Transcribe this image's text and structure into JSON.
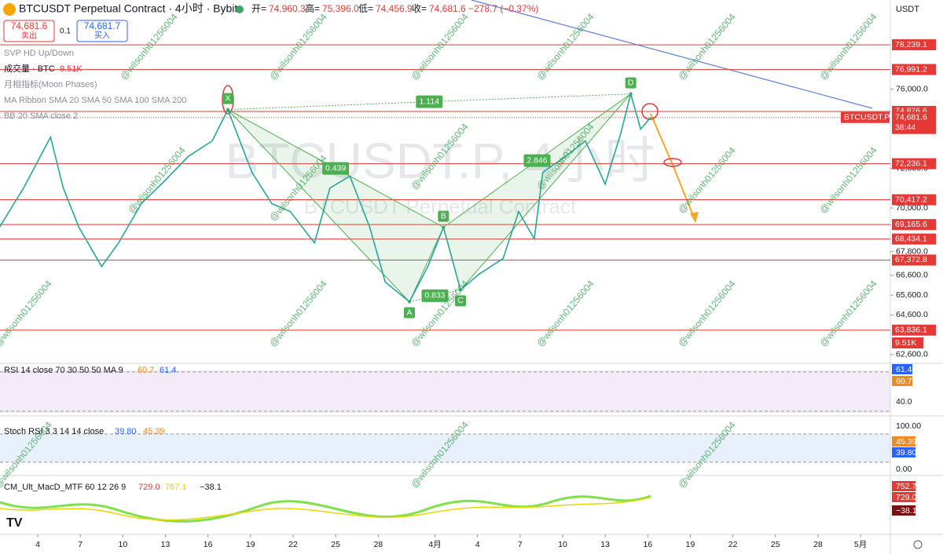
{
  "header": {
    "symbol": "BTCUSDT Perpetual Contract · 4小时 · Bybit",
    "ohlc": [
      {
        "label": "开=",
        "value": "74,960.3"
      },
      {
        "label": "高=",
        "value": "75,396.0"
      },
      {
        "label": "低=",
        "value": "74,456.9"
      },
      {
        "label": "收=",
        "value": "74,681.6"
      }
    ],
    "change": "−278.7 (−0.37%)"
  },
  "trade": {
    "sell_price": "74,681.6",
    "sell_label": "卖出",
    "qty": "0.1",
    "buy_price": "74,681.7",
    "buy_label": "买入"
  },
  "currency": "USDT",
  "indicators": [
    "SVP HD Up/Down",
    "月相指标(Moon Phases)",
    "MA Ribbon SMA 20 SMA 50 SMA 100 SMA 200",
    "BB 20 SMA close 2"
  ],
  "volume": {
    "label": "成交量 · BTC",
    "value": "9.51K"
  },
  "watermark": {
    "symbol": "BTCUSDT.P, 4小时",
    "name": "BTCUSDT Perpetual Contract"
  },
  "user_mark": "@wilsonh01256004",
  "last": {
    "symbol": "BTCUSDT.P",
    "price": "74,681.6",
    "countdown": "38:44"
  },
  "price_chart": {
    "type": "line",
    "x": [
      1.3,
      3.0,
      4.9,
      5.8,
      6.9,
      8.5,
      9.7,
      11.3,
      13.0,
      14.6,
      16.3,
      17.4,
      19.1,
      20.5,
      21.8,
      23.5,
      24.6,
      26.0,
      27.4,
      28.5,
      30.2,
      31.5,
      32.6,
      33.8,
      35.1,
      36.8,
      37.9,
      39.0,
      39.6,
      41.2,
      42.6,
      44.0,
      45.1,
      45.8,
      46.5,
      47.2
    ],
    "values": [
      69030,
      71010,
      73580,
      71010,
      69030,
      67050,
      68240,
      70220,
      71410,
      72600,
      73390,
      74970,
      71800,
      70220,
      69820,
      68240,
      71010,
      71610,
      69030,
      66260,
      65270,
      67050,
      69030,
      65870,
      66660,
      67450,
      69820,
      68440,
      71800,
      72600,
      73390,
      71210,
      73780,
      75760,
      73980,
      74570
    ],
    "ylim": [
      62200,
      80500
    ],
    "xlim": [
      1.34,
      64.1
    ],
    "yticks": [
      {
        "value": 76000,
        "label": "76,000.0"
      },
      {
        "value": 72000,
        "label": "72,000.0"
      },
      {
        "value": 70000,
        "label": "70,000.0"
      },
      {
        "value": 67800,
        "label": "67,800.0"
      },
      {
        "value": 66600,
        "label": "66,600.0"
      },
      {
        "value": 65600,
        "label": "65,600.0"
      },
      {
        "value": 64600,
        "label": "64,600.0"
      },
      {
        "value": 62600,
        "label": "62,600.0"
      }
    ],
    "xticks": [
      4,
      7,
      10,
      13,
      16,
      19,
      22,
      25,
      28,
      {
        "value": 32,
        "label": "4月"
      },
      {
        "value": 35,
        "label": "4"
      },
      {
        "value": 38,
        "label": "7"
      },
      {
        "value": 41,
        "label": "10"
      },
      {
        "value": 44,
        "label": "13"
      },
      {
        "value": 47,
        "label": "16"
      },
      {
        "value": 50,
        "label": "19"
      },
      {
        "value": 53,
        "label": "22"
      },
      {
        "value": 56,
        "label": "25"
      },
      {
        "value": 59,
        "label": "28"
      },
      {
        "value": 62,
        "label": "5月"
      }
    ],
    "levels": [
      {
        "value": 78239.1,
        "label": "78,239.1"
      },
      {
        "value": 76991.2,
        "label": "76,991.2"
      },
      {
        "value": 74876.6,
        "label": "74,876.6"
      },
      {
        "value": 72236.1,
        "label": "72,236.1"
      },
      {
        "value": 70417.2,
        "label": "70,417.2"
      },
      {
        "value": 69165.6,
        "label": "69,165.6"
      },
      {
        "value": 68434.1,
        "label": "68,434.1"
      },
      {
        "value": 67372.8,
        "label": "67,372.8"
      },
      {
        "value": 63836.1,
        "label": "63,836.1"
      }
    ],
    "pattern": [
      {
        "label": "X",
        "x": 17.4,
        "y": 74970
      },
      {
        "label": "A",
        "x": 30.2,
        "y": 65270
      },
      {
        "label": "B",
        "x": 32.6,
        "y": 69030
      },
      {
        "label": "C",
        "x": 33.8,
        "y": 65870
      },
      {
        "label": "D",
        "x": 45.8,
        "y": 75760
      }
    ],
    "ratios": [
      "1.114",
      "0.439",
      "0.833",
      "2.846"
    ]
  },
  "rsi": {
    "label": "RSI 14 close 70 30 50 50 MA 9",
    "values": [
      "60.7",
      "61.4"
    ],
    "axis": "40.0"
  },
  "stoch": {
    "label": "Stoch RSI 3 3 14 14 close",
    "values": [
      "39.80",
      "45.39"
    ],
    "axis": [
      "100.00",
      "0.00"
    ]
  },
  "macd": {
    "label": "CM_Ult_MacD_MTF 60 12 26 9",
    "values": [
      "729.0",
      "767.1",
      "−38.1"
    ],
    "axis": "752.7"
  }
}
